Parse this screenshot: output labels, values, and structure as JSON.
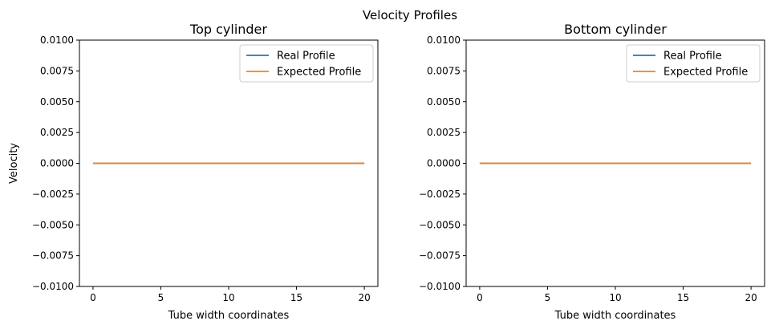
{
  "figure": {
    "suptitle": "Velocity Profiles"
  },
  "chart_data": [
    {
      "type": "line",
      "title": "Top cylinder",
      "xlabel": "Tube width coordinates",
      "ylabel": "Velocity",
      "xlim": [
        -1,
        21
      ],
      "ylim": [
        -0.01,
        0.01
      ],
      "xticks": [
        0,
        5,
        10,
        15,
        20
      ],
      "xtick_labels": [
        "0",
        "5",
        "10",
        "15",
        "20"
      ],
      "yticks": [
        -0.01,
        -0.0075,
        -0.005,
        -0.0025,
        0,
        0.0025,
        0.005,
        0.0075,
        0.01
      ],
      "ytick_labels": [
        "−0.0100",
        "−0.0075",
        "−0.0050",
        "−0.0025",
        "0.0000",
        "0.0025",
        "0.0050",
        "0.0075",
        "0.0100"
      ],
      "grid": false,
      "legend_position": "top-right",
      "series": [
        {
          "name": "Real Profile",
          "color": "#1f77b4",
          "x": [
            0,
            20
          ],
          "y": [
            0,
            0
          ]
        },
        {
          "name": "Expected Profile",
          "color": "#ff7f0e",
          "x": [
            0,
            20
          ],
          "y": [
            0,
            0
          ]
        }
      ]
    },
    {
      "type": "line",
      "title": "Bottom cylinder",
      "xlabel": "Tube width coordinates",
      "ylabel": "",
      "xlim": [
        -1,
        21
      ],
      "ylim": [
        -0.01,
        0.01
      ],
      "xticks": [
        0,
        5,
        10,
        15,
        20
      ],
      "xtick_labels": [
        "0",
        "5",
        "10",
        "15",
        "20"
      ],
      "yticks": [
        -0.01,
        -0.0075,
        -0.005,
        -0.0025,
        0,
        0.0025,
        0.005,
        0.0075,
        0.01
      ],
      "ytick_labels": [
        "−0.0100",
        "−0.0075",
        "−0.0050",
        "−0.0025",
        "0.0000",
        "0.0025",
        "0.0050",
        "0.0075",
        "0.0100"
      ],
      "grid": false,
      "legend_position": "top-right",
      "series": [
        {
          "name": "Real Profile",
          "color": "#1f77b4",
          "x": [
            0,
            20
          ],
          "y": [
            0,
            0
          ]
        },
        {
          "name": "Expected Profile",
          "color": "#ff7f0e",
          "x": [
            0,
            20
          ],
          "y": [
            0,
            0
          ]
        }
      ]
    }
  ]
}
